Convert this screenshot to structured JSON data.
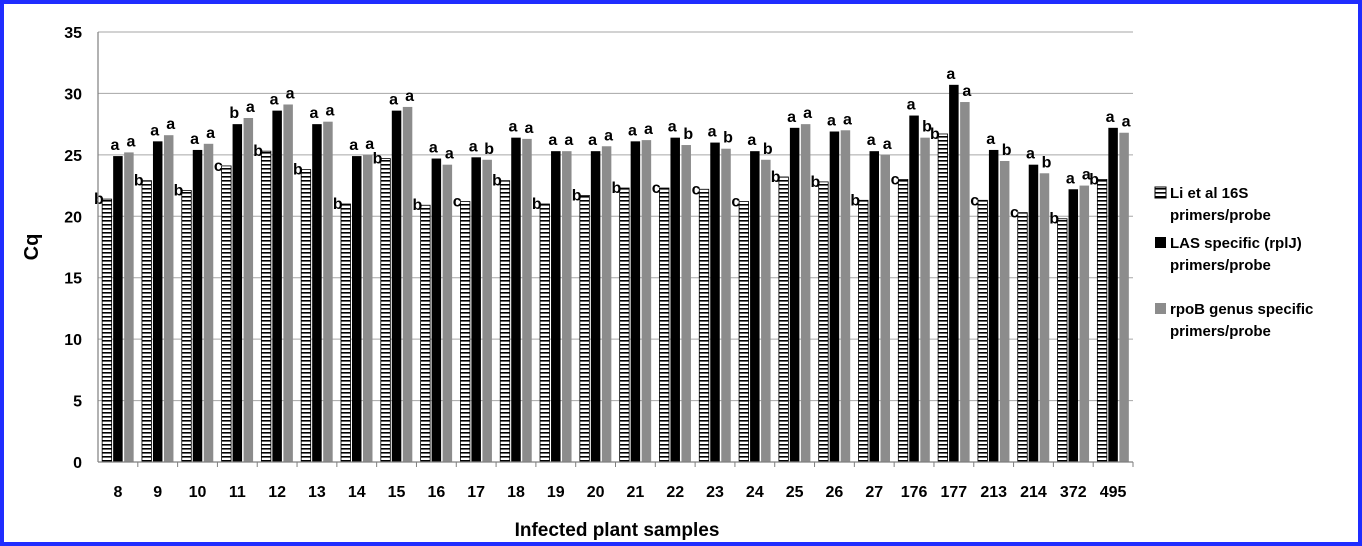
{
  "chart_data": {
    "type": "bar",
    "title": "",
    "xlabel": "Infected plant samples",
    "ylabel": "Cq",
    "ylim": [
      0,
      35
    ],
    "y_ticks": [
      0,
      5,
      10,
      15,
      20,
      25,
      30,
      35
    ],
    "grid": "horizontal",
    "legend_position": "right",
    "categories": [
      "8",
      "9",
      "10",
      "11",
      "12",
      "13",
      "14",
      "15",
      "16",
      "17",
      "18",
      "19",
      "20",
      "21",
      "22",
      "23",
      "24",
      "25",
      "26",
      "27",
      "176",
      "177",
      "213",
      "214",
      "372",
      "495"
    ],
    "series": [
      {
        "name": "Li et al 16S primers/probe",
        "legend_lines": [
          "Li et al 16S",
          "primers/probe"
        ],
        "pattern": "horizontal-stripes",
        "color": "#000000",
        "values": [
          21.4,
          22.9,
          22.1,
          24.1,
          25.3,
          23.8,
          21.0,
          24.7,
          20.9,
          21.2,
          22.9,
          21.0,
          21.7,
          22.3,
          22.3,
          22.2,
          21.2,
          23.2,
          22.8,
          21.3,
          23.0,
          26.7,
          21.3,
          20.3,
          19.8,
          23.0
        ],
        "labels": [
          "b",
          "b",
          "b",
          "c",
          "b",
          "b",
          "b",
          "b",
          "b",
          "c",
          "b",
          "b",
          "b",
          "b",
          "c",
          "c",
          "c",
          "b",
          "b",
          "b",
          "c",
          "b",
          "c",
          "c",
          "b",
          "b"
        ]
      },
      {
        "name": "LAS specific (rplJ) primers/probe",
        "legend_lines": [
          "LAS specific (rplJ)",
          "primers/probe"
        ],
        "pattern": "solid",
        "color": "#000000",
        "values": [
          24.9,
          26.1,
          25.4,
          27.5,
          28.6,
          27.5,
          24.9,
          28.6,
          24.7,
          24.8,
          26.4,
          25.3,
          25.3,
          26.1,
          26.4,
          26.0,
          25.3,
          27.2,
          26.9,
          25.3,
          28.2,
          30.7,
          25.4,
          24.2,
          22.2,
          27.2
        ],
        "labels": [
          "a",
          "a",
          "a",
          "b",
          "a",
          "a",
          "a",
          "a",
          "a",
          "a",
          "a",
          "a",
          "a",
          "a",
          "a",
          "a",
          "a",
          "a",
          "a",
          "a",
          "a",
          "a",
          "a",
          "a",
          "a",
          "a"
        ]
      },
      {
        "name": "rpoB genus specific primers/probe",
        "legend_lines": [
          "rpoB genus specific",
          "primers/probe"
        ],
        "pattern": "solid",
        "color": "#8c8c8c",
        "values": [
          25.2,
          26.6,
          25.9,
          28.0,
          29.1,
          27.7,
          25.0,
          28.9,
          24.2,
          24.6,
          26.3,
          25.3,
          25.7,
          26.2,
          25.8,
          25.5,
          24.6,
          27.5,
          27.0,
          25.0,
          26.4,
          29.3,
          24.5,
          23.5,
          22.5,
          26.8
        ],
        "labels": [
          "a",
          "a",
          "a",
          "a",
          "a",
          "a",
          "a",
          "a",
          "a",
          "b",
          "a",
          "a",
          "a",
          "a",
          "b",
          "b",
          "b",
          "a",
          "a",
          "a",
          "b",
          "a",
          "b",
          "b",
          "a",
          "a"
        ]
      }
    ]
  },
  "colors": {
    "frame_border": "#1f2dff",
    "grid": "#a6a6a6"
  }
}
